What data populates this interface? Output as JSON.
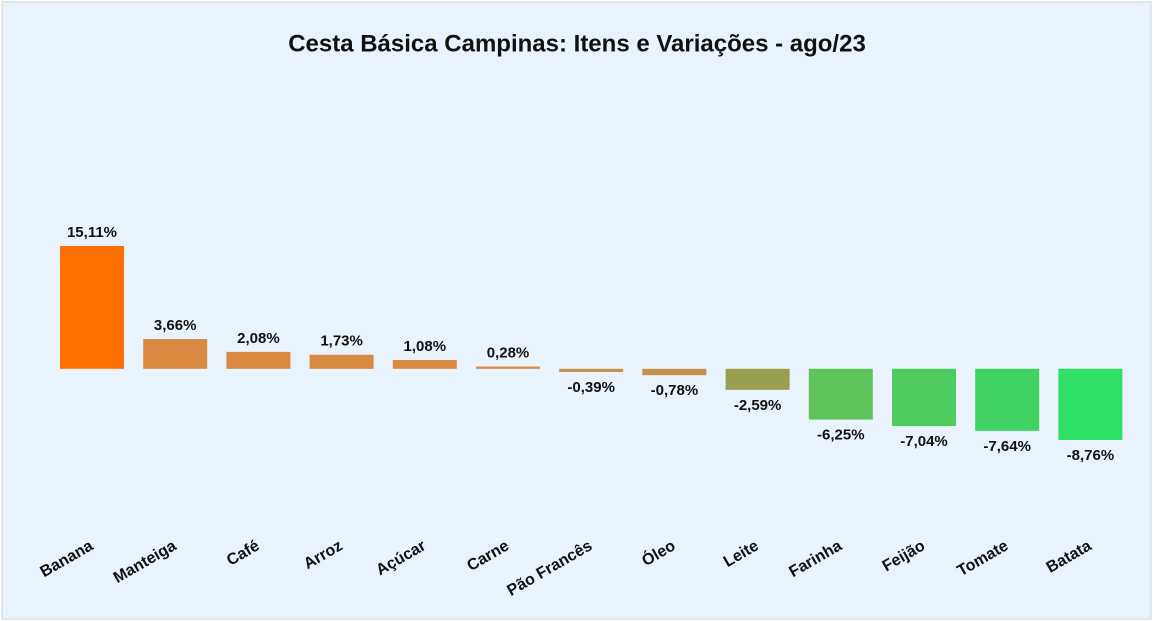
{
  "chart_data": {
    "type": "bar",
    "title": "Cesta Básica Campinas: Itens e Variações - ago/23",
    "categories": [
      "Banana",
      "Manteiga",
      "Café",
      "Arroz",
      "Açúcar",
      "Carne",
      "Pão Francês",
      "Óleo",
      "Leite",
      "Farinha",
      "Feijão",
      "Tomate",
      "Batata"
    ],
    "values": [
      15.11,
      3.66,
      2.08,
      1.73,
      1.08,
      0.28,
      -0.39,
      -0.78,
      -2.59,
      -6.25,
      -7.04,
      -7.64,
      -8.76
    ],
    "value_labels": [
      "15,11%",
      "3,66%",
      "2,08%",
      "1,73%",
      "1,08%",
      "0,28%",
      "-0,39%",
      "-0,78%",
      "-2,59%",
      "-6,25%",
      "-7,04%",
      "-7,64%",
      "-8,76%"
    ],
    "colors": [
      "#ff7000",
      "#d98a40",
      "#d98a40",
      "#d98a40",
      "#d98a40",
      "#d88c42",
      "#c9904e",
      "#c0924a",
      "#98a050",
      "#5ec45a",
      "#4dcb5e",
      "#40d262",
      "#2fdf66"
    ]
  }
}
